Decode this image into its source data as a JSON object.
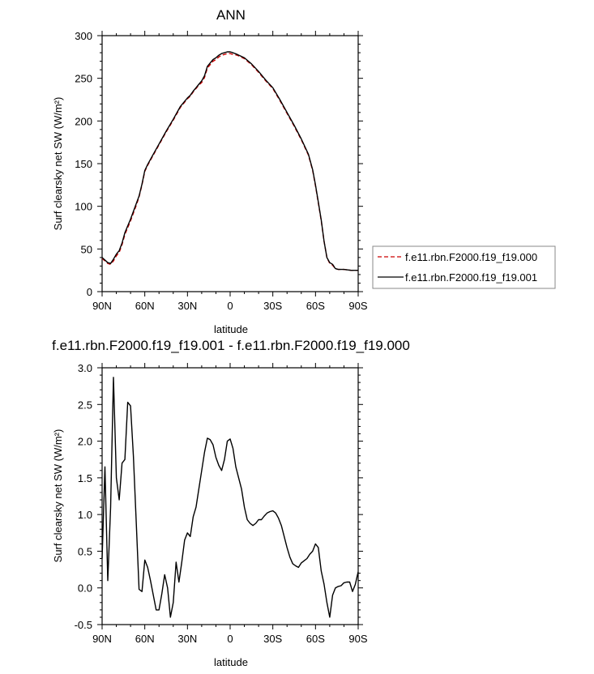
{
  "chart_data": [
    {
      "type": "line",
      "title": "ANN",
      "xlabel": "latitude",
      "ylabel": "Surf clearsky net SW (W/m²)",
      "xlim": [
        90,
        -90
      ],
      "ylim": [
        0,
        300
      ],
      "x_ticks": [
        {
          "value": 90,
          "label": "90N"
        },
        {
          "value": 60,
          "label": "60N"
        },
        {
          "value": 30,
          "label": "30N"
        },
        {
          "value": 0,
          "label": "0"
        },
        {
          "value": -30,
          "label": "30S"
        },
        {
          "value": -60,
          "label": "60S"
        },
        {
          "value": -90,
          "label": "90S"
        }
      ],
      "y_ticks": [
        0,
        50,
        100,
        150,
        200,
        250,
        300
      ],
      "legend_position": "right",
      "grid": false,
      "series": [
        {
          "name": "f.e11.rbn.F2000.f19_f19.000",
          "color": "#cc0000",
          "dash": "dashed",
          "x": [
            90,
            88,
            86,
            84,
            82,
            80,
            78,
            76,
            74,
            72,
            70,
            68,
            66,
            64,
            62,
            60,
            58,
            55,
            50,
            45,
            40,
            35,
            30,
            28,
            26,
            24,
            22,
            20,
            18,
            16,
            14,
            12,
            10,
            8,
            6,
            4,
            2,
            0,
            -2,
            -5,
            -10,
            -15,
            -20,
            -25,
            -30,
            -35,
            -40,
            -45,
            -50,
            -55,
            -58,
            -60,
            -62,
            -64,
            -66,
            -68,
            -70,
            -72,
            -74,
            -76,
            -78,
            -80,
            -85,
            -88,
            -90
          ],
          "values": [
            39,
            36,
            33,
            32,
            36,
            42,
            46,
            55,
            67,
            75,
            83,
            92,
            101,
            111,
            125,
            141,
            148,
            157,
            172,
            187,
            201,
            216,
            226,
            229,
            234,
            238,
            242,
            245,
            251,
            262,
            266,
            270,
            272,
            275,
            277,
            278,
            279,
            279,
            278,
            277,
            273,
            266,
            257,
            247,
            238,
            224,
            209,
            194,
            178,
            160,
            142,
            124,
            104,
            83,
            59,
            40,
            33,
            31,
            27,
            26,
            26,
            26,
            25,
            25,
            25
          ]
        },
        {
          "name": "f.e11.rbn.F2000.f19_f19.001",
          "color": "#000000",
          "dash": "solid",
          "x": [
            90,
            88,
            86,
            84,
            82,
            80,
            78,
            76,
            74,
            72,
            70,
            68,
            66,
            64,
            62,
            60,
            58,
            55,
            50,
            45,
            40,
            35,
            30,
            28,
            26,
            24,
            22,
            20,
            18,
            16,
            14,
            12,
            10,
            8,
            6,
            4,
            2,
            0,
            -2,
            -5,
            -10,
            -15,
            -20,
            -25,
            -30,
            -35,
            -40,
            -45,
            -50,
            -55,
            -58,
            -60,
            -62,
            -64,
            -66,
            -68,
            -70,
            -72,
            -74,
            -76,
            -78,
            -80,
            -85,
            -88,
            -90
          ],
          "values": [
            40,
            37,
            34,
            33,
            38,
            44,
            48,
            57,
            69,
            77,
            85,
            94,
            103,
            112,
            126,
            142,
            149,
            158,
            173,
            188,
            202,
            217,
            227,
            230,
            235,
            239,
            243,
            247,
            253,
            264,
            268,
            272,
            274,
            277,
            279,
            280,
            281,
            281,
            280,
            278,
            274,
            267,
            258,
            248,
            239,
            225,
            210,
            195,
            179,
            161,
            143,
            125,
            105,
            84,
            59,
            40,
            34,
            32,
            27,
            26,
            26,
            26,
            25,
            25,
            25
          ]
        }
      ]
    },
    {
      "type": "line",
      "title": "f.e11.rbn.F2000.f19_f19.001 - f.e11.rbn.F2000.f19_f19.000",
      "xlabel": "latitude",
      "ylabel": "Surf clearsky net SW (W/m²)",
      "xlim": [
        90,
        -90
      ],
      "ylim": [
        -0.5,
        3.0
      ],
      "x_ticks": [
        {
          "value": 90,
          "label": "90N"
        },
        {
          "value": 60,
          "label": "60N"
        },
        {
          "value": 30,
          "label": "30N"
        },
        {
          "value": 0,
          "label": "0"
        },
        {
          "value": -30,
          "label": "30S"
        },
        {
          "value": -60,
          "label": "60S"
        },
        {
          "value": -90,
          "label": "90S"
        }
      ],
      "y_ticks": [
        "-0.5",
        "0.0",
        "0.5",
        "1.0",
        "1.5",
        "2.0",
        "2.5",
        "3.0"
      ],
      "grid": false,
      "series": [
        {
          "color": "#000000",
          "x": [
            90,
            88,
            86,
            84,
            82,
            80,
            78,
            76,
            74,
            72,
            70,
            68,
            66,
            64,
            62,
            60,
            58,
            56,
            54,
            52,
            50,
            48,
            46,
            44,
            42,
            40,
            38,
            36,
            34,
            32,
            30,
            28,
            26,
            24,
            22,
            20,
            18,
            16,
            14,
            12,
            10,
            8,
            6,
            4,
            2,
            0,
            -2,
            -4,
            -6,
            -8,
            -10,
            -12,
            -14,
            -16,
            -18,
            -20,
            -22,
            -24,
            -26,
            -28,
            -30,
            -32,
            -34,
            -36,
            -38,
            -40,
            -42,
            -44,
            -46,
            -48,
            -50,
            -52,
            -54,
            -56,
            -58,
            -60,
            -62,
            -64,
            -66,
            -68,
            -70,
            -72,
            -74,
            -76,
            -78,
            -80,
            -82,
            -84,
            -86,
            -88,
            -90
          ],
          "values": [
            0.4,
            1.65,
            0.1,
            1.1,
            2.87,
            1.5,
            1.2,
            1.7,
            1.75,
            2.53,
            2.48,
            1.8,
            0.9,
            -0.02,
            -0.05,
            0.38,
            0.28,
            0.1,
            -0.1,
            -0.3,
            -0.3,
            -0.08,
            0.18,
            0.0,
            -0.4,
            -0.2,
            0.35,
            0.08,
            0.35,
            0.65,
            0.75,
            0.7,
            0.97,
            1.1,
            1.35,
            1.6,
            1.85,
            2.04,
            2.02,
            1.95,
            1.78,
            1.67,
            1.6,
            1.75,
            2.0,
            2.03,
            1.9,
            1.65,
            1.5,
            1.35,
            1.1,
            0.93,
            0.88,
            0.85,
            0.88,
            0.93,
            0.93,
            0.98,
            1.02,
            1.04,
            1.05,
            1.02,
            0.95,
            0.85,
            0.7,
            0.55,
            0.42,
            0.33,
            0.3,
            0.28,
            0.34,
            0.37,
            0.4,
            0.46,
            0.5,
            0.6,
            0.55,
            0.23,
            0.05,
            -0.2,
            -0.4,
            -0.1,
            0.0,
            0.02,
            0.03,
            0.07,
            0.08,
            0.08,
            -0.05,
            0.05,
            0.22
          ]
        }
      ]
    }
  ],
  "legend": {
    "items": [
      {
        "label": "f.e11.rbn.F2000.f19_f19.000",
        "color": "#cc0000",
        "dash": "dashed"
      },
      {
        "label": "f.e11.rbn.F2000.f19_f19.001",
        "color": "#000000",
        "dash": "solid"
      }
    ]
  }
}
